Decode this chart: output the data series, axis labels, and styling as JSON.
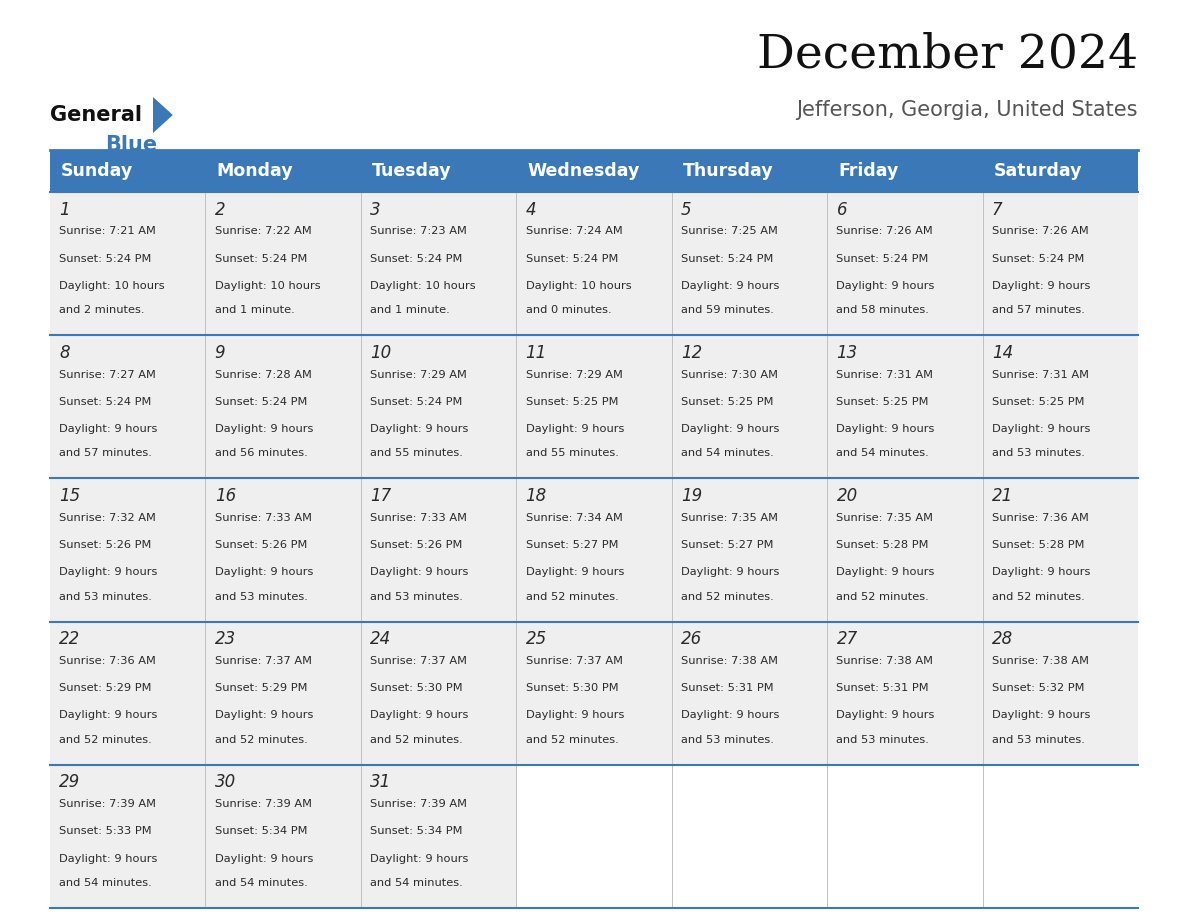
{
  "title": "December 2024",
  "subtitle": "Jefferson, Georgia, United States",
  "header_color": "#3b78b8",
  "header_text_color": "#ffffff",
  "cell_bg_color": "#efefef",
  "empty_cell_color": "#ffffff",
  "cell_border_color": "#3b78b8",
  "row_divider_color": "#3b78b8",
  "days_of_week": [
    "Sunday",
    "Monday",
    "Tuesday",
    "Wednesday",
    "Thursday",
    "Friday",
    "Saturday"
  ],
  "weeks": [
    [
      {
        "day": "1",
        "sunrise": "7:21 AM",
        "sunset": "5:24 PM",
        "dl1": "Daylight: 10 hours",
        "dl2": "and 2 minutes."
      },
      {
        "day": "2",
        "sunrise": "7:22 AM",
        "sunset": "5:24 PM",
        "dl1": "Daylight: 10 hours",
        "dl2": "and 1 minute."
      },
      {
        "day": "3",
        "sunrise": "7:23 AM",
        "sunset": "5:24 PM",
        "dl1": "Daylight: 10 hours",
        "dl2": "and 1 minute."
      },
      {
        "day": "4",
        "sunrise": "7:24 AM",
        "sunset": "5:24 PM",
        "dl1": "Daylight: 10 hours",
        "dl2": "and 0 minutes."
      },
      {
        "day": "5",
        "sunrise": "7:25 AM",
        "sunset": "5:24 PM",
        "dl1": "Daylight: 9 hours",
        "dl2": "and 59 minutes."
      },
      {
        "day": "6",
        "sunrise": "7:26 AM",
        "sunset": "5:24 PM",
        "dl1": "Daylight: 9 hours",
        "dl2": "and 58 minutes."
      },
      {
        "day": "7",
        "sunrise": "7:26 AM",
        "sunset": "5:24 PM",
        "dl1": "Daylight: 9 hours",
        "dl2": "and 57 minutes."
      }
    ],
    [
      {
        "day": "8",
        "sunrise": "7:27 AM",
        "sunset": "5:24 PM",
        "dl1": "Daylight: 9 hours",
        "dl2": "and 57 minutes."
      },
      {
        "day": "9",
        "sunrise": "7:28 AM",
        "sunset": "5:24 PM",
        "dl1": "Daylight: 9 hours",
        "dl2": "and 56 minutes."
      },
      {
        "day": "10",
        "sunrise": "7:29 AM",
        "sunset": "5:24 PM",
        "dl1": "Daylight: 9 hours",
        "dl2": "and 55 minutes."
      },
      {
        "day": "11",
        "sunrise": "7:29 AM",
        "sunset": "5:25 PM",
        "dl1": "Daylight: 9 hours",
        "dl2": "and 55 minutes."
      },
      {
        "day": "12",
        "sunrise": "7:30 AM",
        "sunset": "5:25 PM",
        "dl1": "Daylight: 9 hours",
        "dl2": "and 54 minutes."
      },
      {
        "day": "13",
        "sunrise": "7:31 AM",
        "sunset": "5:25 PM",
        "dl1": "Daylight: 9 hours",
        "dl2": "and 54 minutes."
      },
      {
        "day": "14",
        "sunrise": "7:31 AM",
        "sunset": "5:25 PM",
        "dl1": "Daylight: 9 hours",
        "dl2": "and 53 minutes."
      }
    ],
    [
      {
        "day": "15",
        "sunrise": "7:32 AM",
        "sunset": "5:26 PM",
        "dl1": "Daylight: 9 hours",
        "dl2": "and 53 minutes."
      },
      {
        "day": "16",
        "sunrise": "7:33 AM",
        "sunset": "5:26 PM",
        "dl1": "Daylight: 9 hours",
        "dl2": "and 53 minutes."
      },
      {
        "day": "17",
        "sunrise": "7:33 AM",
        "sunset": "5:26 PM",
        "dl1": "Daylight: 9 hours",
        "dl2": "and 53 minutes."
      },
      {
        "day": "18",
        "sunrise": "7:34 AM",
        "sunset": "5:27 PM",
        "dl1": "Daylight: 9 hours",
        "dl2": "and 52 minutes."
      },
      {
        "day": "19",
        "sunrise": "7:35 AM",
        "sunset": "5:27 PM",
        "dl1": "Daylight: 9 hours",
        "dl2": "and 52 minutes."
      },
      {
        "day": "20",
        "sunrise": "7:35 AM",
        "sunset": "5:28 PM",
        "dl1": "Daylight: 9 hours",
        "dl2": "and 52 minutes."
      },
      {
        "day": "21",
        "sunrise": "7:36 AM",
        "sunset": "5:28 PM",
        "dl1": "Daylight: 9 hours",
        "dl2": "and 52 minutes."
      }
    ],
    [
      {
        "day": "22",
        "sunrise": "7:36 AM",
        "sunset": "5:29 PM",
        "dl1": "Daylight: 9 hours",
        "dl2": "and 52 minutes."
      },
      {
        "day": "23",
        "sunrise": "7:37 AM",
        "sunset": "5:29 PM",
        "dl1": "Daylight: 9 hours",
        "dl2": "and 52 minutes."
      },
      {
        "day": "24",
        "sunrise": "7:37 AM",
        "sunset": "5:30 PM",
        "dl1": "Daylight: 9 hours",
        "dl2": "and 52 minutes."
      },
      {
        "day": "25",
        "sunrise": "7:37 AM",
        "sunset": "5:30 PM",
        "dl1": "Daylight: 9 hours",
        "dl2": "and 52 minutes."
      },
      {
        "day": "26",
        "sunrise": "7:38 AM",
        "sunset": "5:31 PM",
        "dl1": "Daylight: 9 hours",
        "dl2": "and 53 minutes."
      },
      {
        "day": "27",
        "sunrise": "7:38 AM",
        "sunset": "5:31 PM",
        "dl1": "Daylight: 9 hours",
        "dl2": "and 53 minutes."
      },
      {
        "day": "28",
        "sunrise": "7:38 AM",
        "sunset": "5:32 PM",
        "dl1": "Daylight: 9 hours",
        "dl2": "and 53 minutes."
      }
    ],
    [
      {
        "day": "29",
        "sunrise": "7:39 AM",
        "sunset": "5:33 PM",
        "dl1": "Daylight: 9 hours",
        "dl2": "and 54 minutes."
      },
      {
        "day": "30",
        "sunrise": "7:39 AM",
        "sunset": "5:34 PM",
        "dl1": "Daylight: 9 hours",
        "dl2": "and 54 minutes."
      },
      {
        "day": "31",
        "sunrise": "7:39 AM",
        "sunset": "5:34 PM",
        "dl1": "Daylight: 9 hours",
        "dl2": "and 54 minutes."
      },
      null,
      null,
      null,
      null
    ]
  ]
}
